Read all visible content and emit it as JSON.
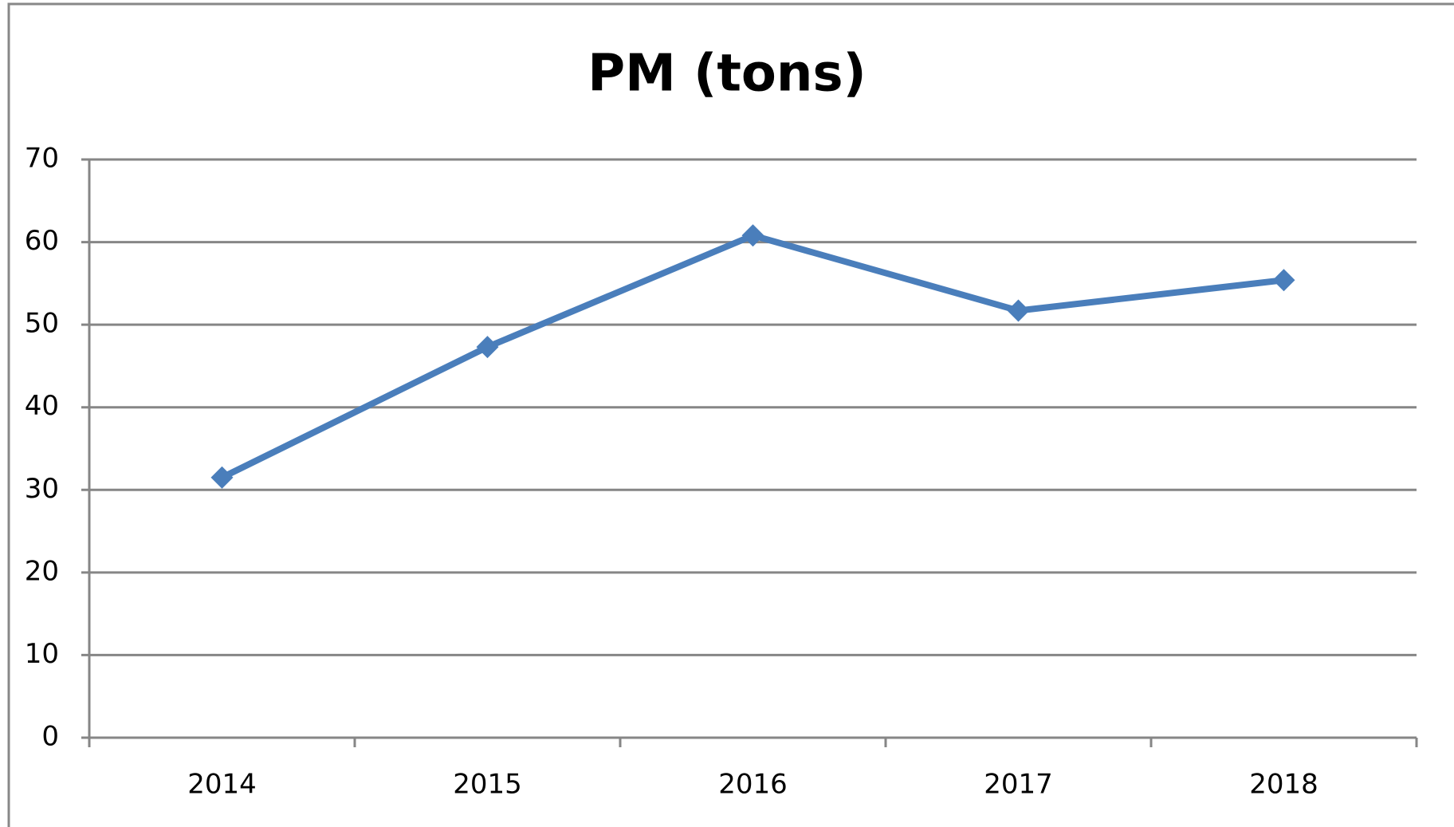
{
  "chart_data": {
    "type": "line",
    "title": "PM (tons)",
    "categories": [
      "2014",
      "2015",
      "2016",
      "2017",
      "2018"
    ],
    "values": [
      31.5,
      47.3,
      60.8,
      51.7,
      55.4
    ],
    "color": "#4a7ebb",
    "ylim": [
      0,
      70
    ],
    "yticks": [
      0,
      10,
      20,
      30,
      40,
      50,
      60,
      70
    ],
    "grid": true
  }
}
